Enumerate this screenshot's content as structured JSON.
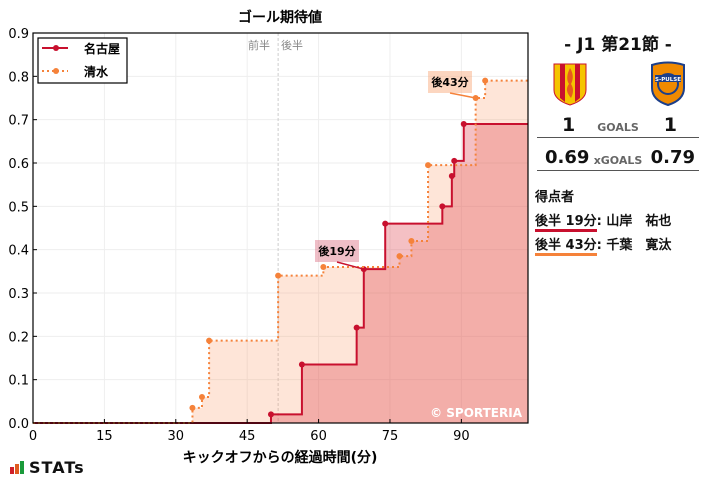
{
  "chart_data": {
    "type": "line",
    "subtype": "step",
    "title": "ゴール期待値",
    "xlabel": "キックオフからの経過時間(分)",
    "ylabel": "",
    "xlim": [
      0,
      104
    ],
    "ylim": [
      0,
      0.9
    ],
    "xticks": [
      0,
      15,
      30,
      45,
      60,
      75,
      90
    ],
    "yticks": [
      0.0,
      0.1,
      0.2,
      0.3,
      0.4,
      0.5,
      0.6,
      0.7,
      0.8,
      0.9
    ],
    "grid": true,
    "legend_position": "upper left",
    "half_divider": {
      "x": 51.5,
      "left_label": "前半",
      "right_label": "後半"
    },
    "series": [
      {
        "name": "名古屋",
        "color": "#c8102e",
        "style": "solid",
        "points": [
          [
            50,
            0.02
          ],
          [
            56.5,
            0.135
          ],
          [
            68,
            0.22
          ],
          [
            69.5,
            0.355
          ],
          [
            74,
            0.46
          ],
          [
            86,
            0.5
          ],
          [
            88,
            0.57
          ],
          [
            88.5,
            0.605
          ],
          [
            90.5,
            0.69
          ]
        ],
        "final": 0.69
      },
      {
        "name": "清水",
        "color": "#f5823a",
        "style": "dotted",
        "points": [
          [
            33.5,
            0.035
          ],
          [
            35.5,
            0.06
          ],
          [
            37,
            0.19
          ],
          [
            51.5,
            0.34
          ],
          [
            61,
            0.36
          ],
          [
            77,
            0.385
          ],
          [
            79.5,
            0.42
          ],
          [
            83,
            0.595
          ],
          [
            93,
            0.75
          ],
          [
            95,
            0.79
          ]
        ],
        "final": 0.79
      }
    ],
    "annotations": [
      {
        "text": "後19分",
        "team": "名古屋",
        "point": [
          69.5,
          0.355
        ]
      },
      {
        "text": "後43分",
        "team": "清水",
        "point": [
          93,
          0.75
        ]
      }
    ],
    "watermark": "© SPORTERIA"
  },
  "side": {
    "round": "-  J1 第21節  -",
    "home": {
      "name": "名古屋",
      "goals": "1",
      "xgoals": "0.69",
      "color": "#c8102e"
    },
    "away": {
      "name": "清水",
      "goals": "1",
      "xgoals": "0.79",
      "color": "#f5823a"
    },
    "goals_label": "GOALS",
    "xgoals_label": "xGOALS",
    "scorers_title": "得点者",
    "scorers": [
      {
        "time": "後半 19分",
        "name": ": 山岸　祐也",
        "color": "#c8102e"
      },
      {
        "time": "後半 43分",
        "name": ": 千葉　寛汰",
        "color": "#f5823a"
      }
    ]
  },
  "footer": {
    "brand": "STATs"
  }
}
